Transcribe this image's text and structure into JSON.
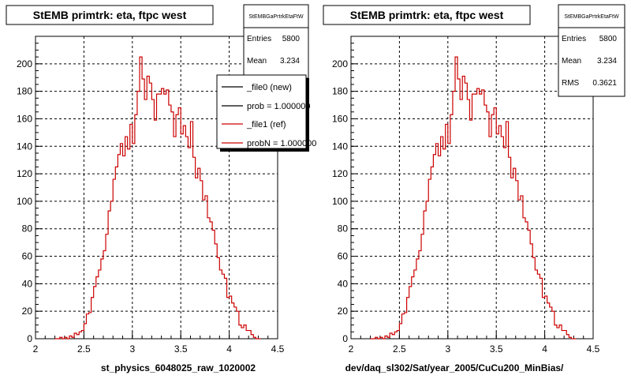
{
  "chart_data": [
    {
      "type": "histogram",
      "title": "StEMB primtrk: eta, ftpc west",
      "xlabel": "st_physics_6048025_raw_1020002",
      "xlim": [
        2,
        4.5
      ],
      "ylim": [
        0,
        220
      ],
      "xticks": [
        2,
        2.5,
        3,
        3.5,
        4,
        4.5
      ],
      "yticks": [
        0,
        20,
        40,
        60,
        80,
        100,
        120,
        140,
        160,
        180,
        200
      ],
      "grid": true,
      "bin_width": 0.025,
      "x_start": 2.2,
      "stats": {
        "title": "StEMBGaPrtrkEtaFtW",
        "rows": [
          {
            "label": "Entries",
            "value": "5800"
          },
          {
            "label": "Mean",
            "value": "3.234"
          }
        ]
      },
      "legend": {
        "position": "top-right",
        "entries": [
          {
            "label": "_file0 (new)",
            "color": "#000000"
          },
          {
            "label": "prob = 1.000000",
            "color": "#000000"
          },
          {
            "label": "_file1 (ref)",
            "color": "#cc0000"
          },
          {
            "label": "probN = 1.000000",
            "color": "#cc0000"
          }
        ]
      },
      "series": [
        {
          "name": "_file1 (ref)",
          "color": "#cc0000",
          "values": [
            0,
            0,
            1,
            0,
            1,
            0,
            2,
            1,
            4,
            3,
            5,
            6,
            11,
            18,
            19,
            30,
            38,
            45,
            50,
            58,
            64,
            76,
            93,
            100,
            116,
            125,
            134,
            142,
            133,
            147,
            138,
            156,
            142,
            163,
            180,
            205,
            189,
            174,
            191,
            186,
            174,
            159,
            178,
            178,
            182,
            178,
            181,
            170,
            165,
            147,
            163,
            168,
            149,
            155,
            147,
            139,
            158,
            132,
            117,
            124,
            115,
            101,
            104,
            88,
            85,
            79,
            69,
            59,
            50,
            47,
            44,
            30,
            31,
            26,
            23,
            20,
            10,
            8,
            10,
            6,
            6,
            3,
            1,
            0,
            0
          ]
        }
      ]
    },
    {
      "type": "histogram",
      "title": "StEMB primtrk: eta, ftpc west",
      "xlabel": "dev/daq_sl302/Sat/year_2005/CuCu200_MinBias/",
      "xlim": [
        2,
        4.5
      ],
      "ylim": [
        0,
        220
      ],
      "xticks": [
        2,
        2.5,
        3,
        3.5,
        4,
        4.5
      ],
      "yticks": [
        0,
        20,
        40,
        60,
        80,
        100,
        120,
        140,
        160,
        180,
        200
      ],
      "grid": true,
      "bin_width": 0.025,
      "x_start": 2.2,
      "stats": {
        "title": "StEMBGaPrtrkEtaFtW",
        "rows": [
          {
            "label": "Entries",
            "value": "5800"
          },
          {
            "label": "Mean",
            "value": "3.234"
          },
          {
            "label": "RMS",
            "value": "0.3621"
          }
        ]
      },
      "series": [
        {
          "name": "_file1 (ref)",
          "color": "#cc0000",
          "values": [
            0,
            0,
            1,
            0,
            1,
            0,
            2,
            1,
            4,
            3,
            5,
            6,
            11,
            18,
            19,
            30,
            38,
            45,
            50,
            58,
            64,
            76,
            93,
            100,
            116,
            125,
            134,
            142,
            133,
            147,
            138,
            156,
            142,
            163,
            180,
            205,
            189,
            174,
            191,
            186,
            174,
            159,
            178,
            178,
            182,
            178,
            181,
            170,
            165,
            147,
            163,
            168,
            149,
            155,
            147,
            139,
            158,
            132,
            117,
            124,
            115,
            101,
            104,
            88,
            85,
            79,
            69,
            59,
            50,
            47,
            44,
            30,
            31,
            26,
            23,
            20,
            10,
            8,
            10,
            6,
            6,
            3,
            1,
            0,
            0
          ]
        }
      ]
    }
  ]
}
